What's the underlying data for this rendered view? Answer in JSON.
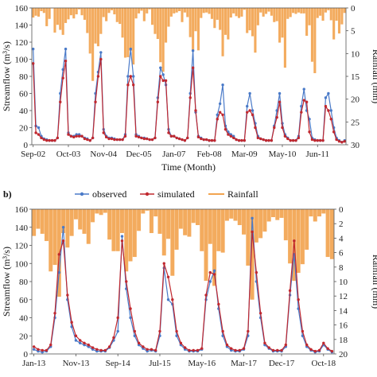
{
  "colors": {
    "observed": "#4a7ac8",
    "simulated": "#c0282f",
    "rainfall": "#f2a450",
    "axis": "#555555"
  },
  "chart_data": [
    {
      "type": "line",
      "panel_label": "",
      "xlabel": "Time (Month)",
      "ylabel_left": "Streamflow (m³/s)",
      "ylabel_right": "Rainfall (mm)",
      "ylim_left": [
        0,
        160
      ],
      "ylim_right_inverted": [
        0,
        30
      ],
      "left_ticks": [
        0,
        20,
        40,
        60,
        80,
        100,
        120,
        140,
        160
      ],
      "right_ticks": [
        0,
        5,
        10,
        15,
        20,
        25,
        30
      ],
      "x_tick_labels": [
        "Sep-02",
        "Oct-03",
        "Nov-04",
        "Dec-05",
        "Jan-07",
        "Feb-08",
        "Mar-09",
        "May-10",
        "Jun-11"
      ],
      "x_tick_index": [
        0,
        13,
        26,
        39,
        52,
        65,
        78,
        92,
        105
      ],
      "n_months": 116,
      "legend": [],
      "series": [
        {
          "name": "observed",
          "values": [
            112,
            22,
            20,
            10,
            7,
            6,
            5,
            5,
            5,
            8,
            60,
            88,
            112,
            14,
            10,
            10,
            12,
            12,
            10,
            8,
            7,
            5,
            8,
            60,
            85,
            108,
            18,
            10,
            8,
            8,
            7,
            6,
            6,
            6,
            12,
            80,
            112,
            80,
            12,
            10,
            8,
            8,
            7,
            6,
            6,
            8,
            55,
            90,
            82,
            70,
            18,
            10,
            10,
            8,
            7,
            6,
            5,
            8,
            60,
            110,
            38,
            10,
            8,
            6,
            6,
            5,
            5,
            5,
            35,
            48,
            70,
            22,
            15,
            12,
            10,
            6,
            5,
            5,
            5,
            45,
            60,
            40,
            25,
            10,
            7,
            6,
            5,
            5,
            5,
            22,
            40,
            60,
            25,
            12,
            8,
            5,
            5,
            5,
            10,
            45,
            65,
            40,
            30,
            8,
            6,
            5,
            5,
            5,
            55,
            60,
            40,
            20,
            8,
            5,
            3,
            5
          ]
        },
        {
          "name": "simulated",
          "values": [
            95,
            14,
            12,
            8,
            6,
            5,
            5,
            5,
            5,
            8,
            50,
            78,
            98,
            12,
            10,
            9,
            10,
            10,
            10,
            7,
            6,
            5,
            8,
            50,
            80,
            100,
            14,
            9,
            7,
            7,
            6,
            6,
            6,
            6,
            10,
            70,
            80,
            70,
            10,
            9,
            8,
            7,
            7,
            6,
            6,
            8,
            50,
            80,
            75,
            75,
            14,
            10,
            10,
            8,
            7,
            6,
            5,
            8,
            55,
            90,
            40,
            9,
            7,
            6,
            6,
            5,
            5,
            5,
            30,
            38,
            35,
            18,
            12,
            10,
            8,
            6,
            5,
            5,
            5,
            38,
            40,
            35,
            20,
            8,
            7,
            6,
            5,
            5,
            5,
            20,
            32,
            50,
            20,
            10,
            7,
            5,
            5,
            5,
            8,
            38,
            52,
            50,
            15,
            6,
            5,
            5,
            5,
            5,
            45,
            40,
            30,
            15,
            6,
            4,
            3,
            4
          ]
        }
      ],
      "rainfall_mm": [
        2.1,
        1.7,
        1.9,
        0.7,
        1.1,
        4.0,
        2.4,
        0.1,
        5.4,
        3.7,
        4.8,
        5.9,
        3.3,
        2.5,
        1.6,
        2.3,
        1.4,
        0.3,
        1.6,
        2.6,
        5.5,
        10.0,
        16.0,
        7.8,
        8.4,
        5.7,
        2.0,
        2.9,
        1.1,
        0.5,
        1.4,
        3.1,
        3.5,
        6.5,
        10.9,
        10.8,
        9.4,
        12.4,
        2.3,
        1.2,
        0.6,
        2.9,
        1.2,
        0.3,
        3.7,
        5.7,
        6.8,
        11.9,
        14.0,
        7.6,
        4.1,
        1.9,
        1.2,
        1.0,
        0.7,
        3.1,
        1.0,
        2.0,
        6.4,
        9.5,
        5.1,
        9.3,
        2.2,
        1.1,
        1.0,
        1.3,
        2.4,
        4.4,
        2.6,
        4.8,
        10.6,
        5.9,
        6.9,
        2.1,
        1.2,
        1.8,
        2.2,
        1.9,
        0.4,
        5.5,
        4.9,
        6.2,
        9.8,
        3.8,
        1.0,
        1.9,
        1.3,
        0.8,
        1.7,
        3.1,
        2.9,
        7.6,
        6.5,
        13.1,
        2.4,
        2.0,
        1.1,
        1.3,
        1.0,
        1.2,
        1.2,
        6.1,
        3.8,
        11.8,
        14.3,
        2.2,
        1.7,
        2.8,
        1.0,
        0.5,
        2.7,
        6.9,
        2.8,
        5.6,
        3.6,
        1.1
      ]
    },
    {
      "type": "line",
      "panel_label": "b)",
      "xlabel": "",
      "ylabel_left": "Streamflow (m³/s)",
      "ylabel_right": "Rainfall (mm)",
      "ylim_left": [
        0,
        160
      ],
      "ylim_right_inverted": [
        0,
        20
      ],
      "left_ticks": [
        0,
        20,
        40,
        60,
        80,
        100,
        120,
        140,
        160
      ],
      "right_ticks": [
        0,
        2,
        4,
        6,
        8,
        10,
        12,
        14,
        16,
        18,
        20
      ],
      "x_tick_labels": [
        "Jan-13",
        "Nov-13",
        "Sep-14",
        "Jul-15",
        "May-16",
        "Mar-17",
        "Dec-17",
        "Oct-18"
      ],
      "x_tick_index": [
        0,
        10,
        20,
        30,
        40,
        50,
        59,
        69
      ],
      "n_months": 72,
      "legend": [
        "observed",
        "simulated",
        "Rainfall"
      ],
      "series": [
        {
          "name": "observed",
          "values": [
            5,
            3,
            2,
            3,
            8,
            40,
            90,
            140,
            60,
            30,
            15,
            12,
            10,
            8,
            5,
            3,
            3,
            3,
            7,
            15,
            25,
            130,
            72,
            40,
            20,
            10,
            6,
            3,
            4,
            3,
            20,
            95,
            60,
            55,
            20,
            10,
            5,
            3,
            3,
            3,
            5,
            60,
            80,
            92,
            50,
            20,
            8,
            4,
            3,
            3,
            5,
            20,
            150,
            80,
            40,
            10,
            6,
            3,
            3,
            3,
            8,
            65,
            110,
            50,
            20,
            8,
            4,
            2,
            3,
            10,
            5,
            2
          ]
        },
        {
          "name": "simulated",
          "values": [
            8,
            5,
            4,
            4,
            10,
            45,
            110,
            125,
            65,
            35,
            20,
            15,
            12,
            10,
            7,
            5,
            4,
            4,
            8,
            18,
            40,
            125,
            80,
            50,
            25,
            12,
            8,
            5,
            5,
            4,
            25,
            100,
            85,
            60,
            25,
            12,
            7,
            4,
            4,
            4,
            6,
            65,
            90,
            88,
            55,
            25,
            10,
            6,
            4,
            4,
            6,
            25,
            135,
            90,
            45,
            12,
            7,
            4,
            4,
            4,
            10,
            70,
            125,
            60,
            25,
            10,
            5,
            3,
            4,
            12,
            6,
            3
          ]
        }
      ],
      "rainfall_mm": [
        3.7,
        2.7,
        3.4,
        4.4,
        8.6,
        7.7,
        12.1,
        3.3,
        5.3,
        3.7,
        1.4,
        2.8,
        3.4,
        4.8,
        1.8,
        0.6,
        0.8,
        0.5,
        4.2,
        5.8,
        5.8,
        3.3,
        8.6,
        7.2,
        6.6,
        3.0,
        0.6,
        0.2,
        3.3,
        1.0,
        3.4,
        6.4,
        4.1,
        9.2,
        5.6,
        2.7,
        3.6,
        3.8,
        1.9,
        2.2,
        5.8,
        9.9,
        4.8,
        10.6,
        5.8,
        6.0,
        1.6,
        1.3,
        1.6,
        2.2,
        3.5,
        7.8,
        12.5,
        4.6,
        4.0,
        3.1,
        1.7,
        1.1,
        1.5,
        1.2,
        4.3,
        7.5,
        9.9,
        8.8,
        7.6,
        5.6,
        1.0,
        1.7,
        1.0,
        0.6,
        6.6,
        6.9
      ]
    }
  ]
}
